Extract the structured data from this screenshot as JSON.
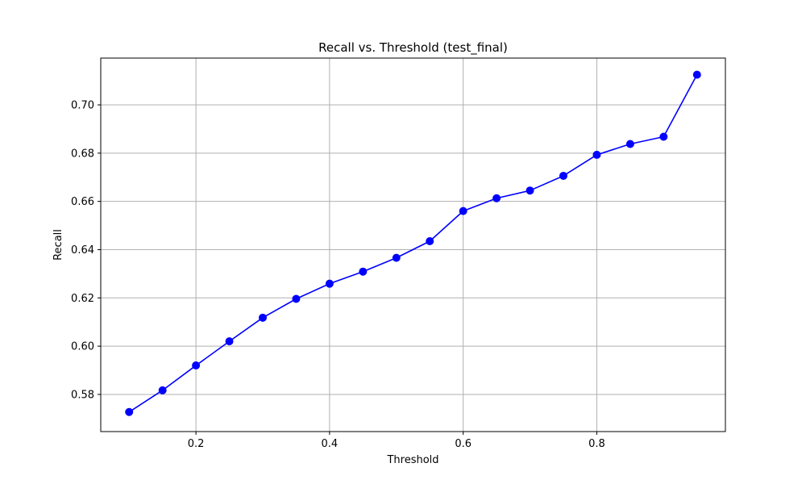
{
  "chart_data": {
    "type": "line",
    "title": "Recall vs. Threshold (test_final)",
    "xlabel": "Threshold",
    "ylabel": "Recall",
    "xlim": [
      0.0575,
      0.9925
    ],
    "ylim": [
      0.5646,
      0.7194
    ],
    "xticks": [
      0.2,
      0.4,
      0.6,
      0.8
    ],
    "xtick_labels": [
      "0.2",
      "0.4",
      "0.6",
      "0.8"
    ],
    "yticks": [
      0.58,
      0.6,
      0.62,
      0.64,
      0.66,
      0.68,
      0.7
    ],
    "ytick_labels": [
      "0.58",
      "0.60",
      "0.62",
      "0.64",
      "0.66",
      "0.68",
      "0.70"
    ],
    "grid": true,
    "series": [
      {
        "color": "#0000ff",
        "marker": "circle",
        "x": [
          0.1,
          0.15,
          0.2,
          0.25,
          0.3,
          0.35,
          0.4,
          0.45,
          0.5,
          0.55,
          0.6,
          0.65,
          0.7,
          0.75,
          0.8,
          0.85,
          0.9,
          0.95
        ],
        "y": [
          0.5727,
          0.5817,
          0.592,
          0.602,
          0.6118,
          0.6196,
          0.6259,
          0.6309,
          0.6366,
          0.6435,
          0.656,
          0.6613,
          0.6645,
          0.6706,
          0.6793,
          0.6838,
          0.6868,
          0.7125
        ]
      }
    ]
  }
}
